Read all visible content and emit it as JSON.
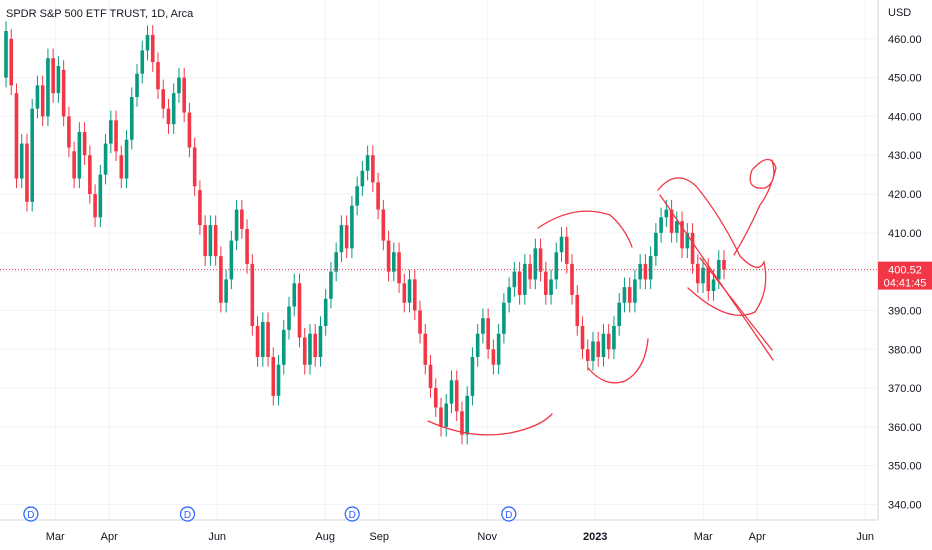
{
  "header": {
    "title": "SPDR S&P 500 ETF TRUST, 1D, Arca"
  },
  "price_scale": {
    "currency": "USD"
  },
  "last_price": {
    "value": "400.52",
    "countdown": "04:41:45",
    "color": "#f23645"
  },
  "colors": {
    "up": "#089981",
    "down": "#f23645",
    "grid": "#f0f3fa",
    "drawing": "#f23645",
    "dividend": "#2962ff"
  },
  "dividends": [
    {
      "label": "D",
      "x": 1.55
    },
    {
      "label": "D",
      "x": 4.45
    },
    {
      "label": "D",
      "x": 7.5
    },
    {
      "label": "D",
      "x": 10.4
    }
  ],
  "chart_data": {
    "type": "candlestick",
    "title": "SPDR S&P 500 ETF TRUST, 1D, Arca",
    "ylabel": "USD",
    "ylim": [
      336,
      470
    ],
    "y_ticks": [
      340,
      350,
      360,
      370,
      380,
      390,
      400,
      410,
      420,
      430,
      440,
      450,
      460
    ],
    "x_ticks": [
      {
        "label": "Mar",
        "x": 2.0
      },
      {
        "label": "Apr",
        "x": 3.0
      },
      {
        "label": "Jun",
        "x": 5.0
      },
      {
        "label": "Aug",
        "x": 7.0
      },
      {
        "label": "Sep",
        "x": 8.0
      },
      {
        "label": "Nov",
        "x": 10.0
      },
      {
        "label": "2023",
        "x": 12.0
      },
      {
        "label": "Mar",
        "x": 14.0
      },
      {
        "label": "Apr",
        "x": 15.0
      },
      {
        "label": "Jun",
        "x": 17.0
      }
    ],
    "grid": true,
    "series": [
      {
        "values": [
          [
            450,
            462
          ],
          [
            460,
            448
          ],
          [
            446,
            424
          ],
          [
            424,
            433
          ],
          [
            433,
            418
          ],
          [
            418,
            442
          ],
          [
            442,
            448
          ],
          [
            448,
            440
          ],
          [
            440,
            455
          ],
          [
            455,
            446
          ],
          [
            446,
            453
          ],
          [
            452,
            440
          ],
          [
            440,
            432
          ],
          [
            431,
            424
          ],
          [
            424,
            436
          ],
          [
            436,
            430
          ],
          [
            430,
            420
          ],
          [
            420,
            414
          ],
          [
            414,
            425
          ],
          [
            425,
            433
          ],
          [
            433,
            439
          ],
          [
            439,
            431
          ],
          [
            430,
            424
          ],
          [
            424,
            434
          ],
          [
            434,
            445
          ],
          [
            445,
            451
          ],
          [
            451,
            457
          ],
          [
            457,
            461
          ],
          [
            461,
            454
          ],
          [
            454,
            447
          ],
          [
            447,
            442
          ],
          [
            442,
            438
          ],
          [
            438,
            446
          ],
          [
            446,
            450
          ],
          [
            450,
            441
          ],
          [
            441,
            432
          ],
          [
            432,
            422
          ],
          [
            421,
            412
          ],
          [
            412,
            404
          ],
          [
            404,
            412
          ],
          [
            412,
            404
          ],
          [
            404,
            392
          ],
          [
            392,
            398
          ],
          [
            398,
            408
          ],
          [
            408,
            416
          ],
          [
            416,
            411
          ],
          [
            411,
            402
          ],
          [
            402,
            386
          ],
          [
            386,
            378
          ],
          [
            378,
            387
          ],
          [
            387,
            378
          ],
          [
            378,
            368
          ],
          [
            368,
            376
          ],
          [
            376,
            385
          ],
          [
            385,
            391
          ],
          [
            391,
            397
          ],
          [
            397,
            383
          ],
          [
            383,
            376
          ],
          [
            376,
            384
          ],
          [
            384,
            378
          ],
          [
            378,
            386
          ],
          [
            386,
            393
          ],
          [
            393,
            400
          ],
          [
            400,
            405
          ],
          [
            405,
            412
          ],
          [
            412,
            406
          ],
          [
            406,
            417
          ],
          [
            417,
            422
          ],
          [
            422,
            426
          ],
          [
            426,
            430
          ],
          [
            430,
            423
          ],
          [
            423,
            416
          ],
          [
            416,
            408
          ],
          [
            408,
            400
          ],
          [
            400,
            405
          ],
          [
            405,
            397
          ],
          [
            397,
            392
          ],
          [
            392,
            398
          ],
          [
            398,
            390
          ],
          [
            390,
            384
          ],
          [
            384,
            376
          ],
          [
            376,
            370
          ],
          [
            370,
            365
          ],
          [
            365,
            360
          ],
          [
            360,
            366
          ],
          [
            366,
            372
          ],
          [
            372,
            364
          ],
          [
            364,
            358
          ],
          [
            358,
            368
          ],
          [
            368,
            378
          ],
          [
            378,
            384
          ],
          [
            384,
            388
          ],
          [
            388,
            380
          ],
          [
            380,
            376
          ],
          [
            376,
            384
          ],
          [
            384,
            392
          ],
          [
            392,
            396
          ],
          [
            396,
            400
          ],
          [
            400,
            394
          ],
          [
            394,
            402
          ],
          [
            402,
            398
          ],
          [
            398,
            406
          ],
          [
            406,
            400
          ],
          [
            400,
            394
          ],
          [
            394,
            398
          ],
          [
            398,
            405
          ],
          [
            405,
            409
          ],
          [
            409,
            402
          ],
          [
            402,
            394
          ],
          [
            394,
            386
          ],
          [
            386,
            380
          ],
          [
            380,
            377
          ],
          [
            377,
            382
          ],
          [
            382,
            378
          ],
          [
            378,
            384
          ],
          [
            384,
            380
          ],
          [
            380,
            386
          ],
          [
            386,
            392
          ],
          [
            392,
            396
          ],
          [
            396,
            392
          ],
          [
            392,
            398
          ],
          [
            398,
            402
          ],
          [
            402,
            398
          ],
          [
            398,
            404
          ],
          [
            404,
            410
          ],
          [
            410,
            414
          ],
          [
            414,
            416
          ],
          [
            416,
            410
          ],
          [
            410,
            413
          ],
          [
            413,
            406
          ],
          [
            406,
            410
          ],
          [
            410,
            402
          ],
          [
            402,
            397
          ],
          [
            397,
            401
          ],
          [
            401,
            395
          ],
          [
            395,
            398
          ],
          [
            398,
            403
          ],
          [
            403,
            400.52
          ]
        ]
      }
    ]
  }
}
